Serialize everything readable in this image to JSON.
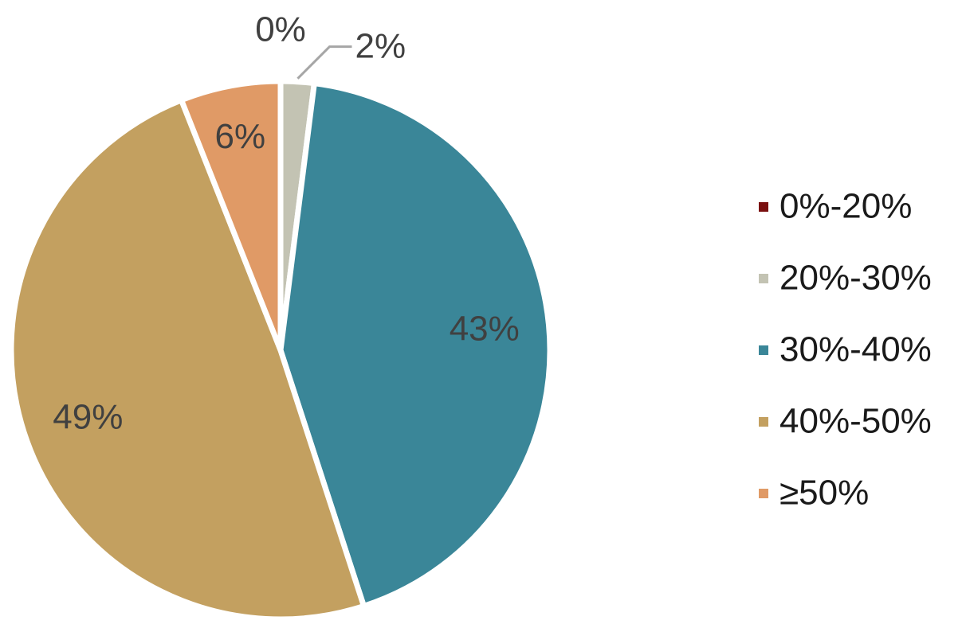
{
  "chart_data": {
    "type": "pie",
    "categories": [
      "0%-20%",
      "20%-30%",
      "30%-40%",
      "40%-50%",
      "≥50%"
    ],
    "values": [
      0,
      2,
      43,
      49,
      6
    ],
    "value_labels": [
      "0%",
      "2%",
      "43%",
      "49%",
      "6%"
    ],
    "colors": [
      "#7a1010",
      "#c3c3b3",
      "#3a8698",
      "#c3a060",
      "#e09a66"
    ],
    "legend": "right"
  }
}
